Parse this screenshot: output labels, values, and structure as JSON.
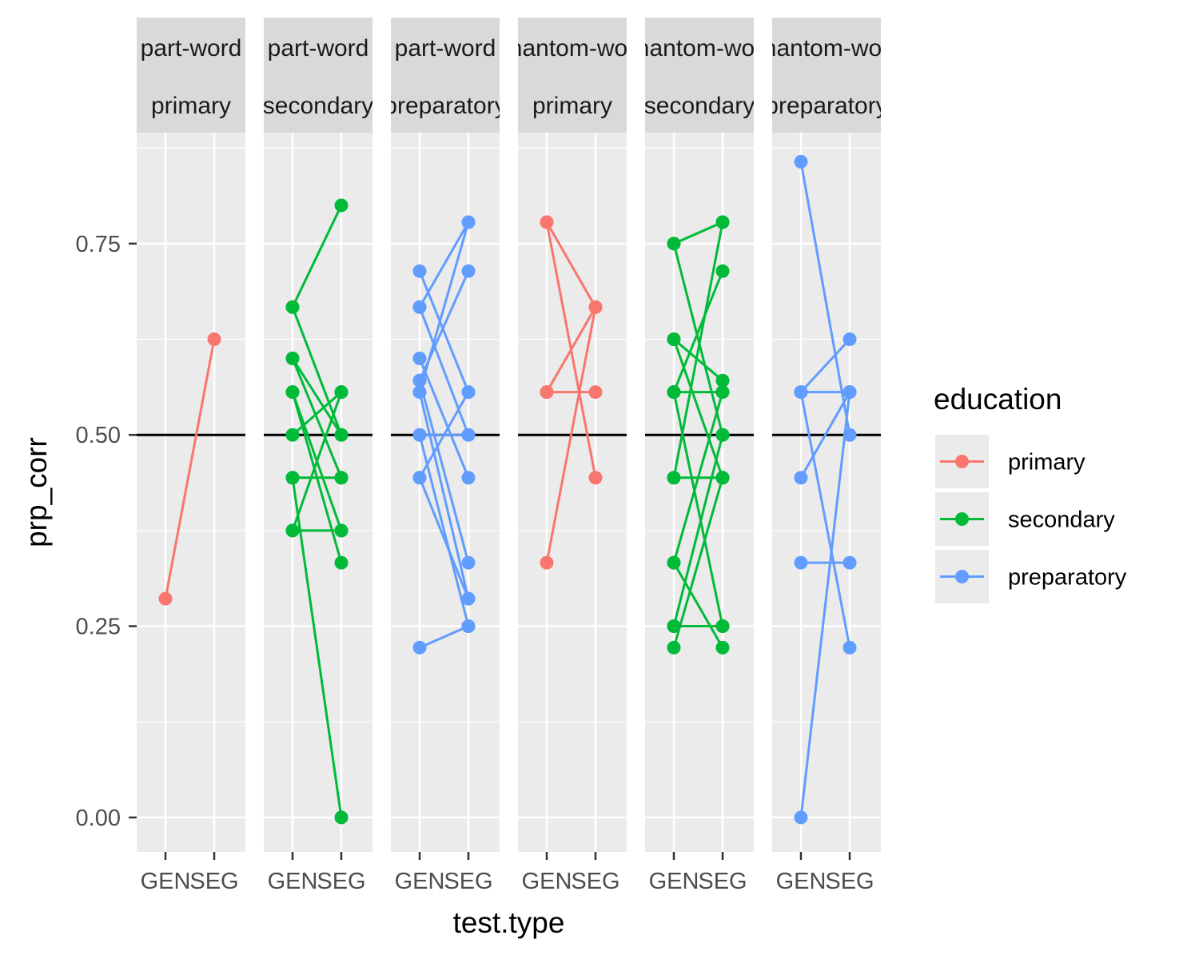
{
  "chart_data": {
    "type": "line",
    "xlabel": "test.type",
    "ylabel": "prp_corr",
    "x_categories": [
      "GEN",
      "SEG"
    ],
    "ylim": [
      -0.045,
      0.895
    ],
    "y_ticks": [
      0,
      0.25,
      0.5,
      0.75
    ],
    "y_tick_labels": [
      "0.00",
      "0.25",
      "0.50",
      "0.75"
    ],
    "reference_line": 0.5,
    "grid": true,
    "legend": {
      "title": "education",
      "position": "right",
      "entries": [
        {
          "label": "primary",
          "color": "#F8766D"
        },
        {
          "label": "secondary",
          "color": "#00BA38"
        },
        {
          "label": "preparatory",
          "color": "#619CFF"
        }
      ]
    },
    "panels": [
      {
        "strip_top": "part-word",
        "strip_bottom": "primary",
        "education": "primary",
        "pairs": [
          [
            0.286,
            0.625
          ]
        ]
      },
      {
        "strip_top": "part-word",
        "strip_bottom": "secondary",
        "education": "secondary",
        "pairs": [
          [
            0.667,
            0.8
          ],
          [
            0.667,
            0.5
          ],
          [
            0.6,
            0.444
          ],
          [
            0.6,
            0.5
          ],
          [
            0.556,
            0.375
          ],
          [
            0.556,
            0.333
          ],
          [
            0.5,
            0.556
          ],
          [
            0.444,
            0.444
          ],
          [
            0.444,
            0.0
          ],
          [
            0.375,
            0.556
          ],
          [
            0.375,
            0.375
          ]
        ]
      },
      {
        "strip_top": "part-word",
        "strip_bottom": "preparatory",
        "education": "preparatory",
        "pairs": [
          [
            0.714,
            0.556
          ],
          [
            0.667,
            0.778
          ],
          [
            0.667,
            0.5
          ],
          [
            0.6,
            0.444
          ],
          [
            0.571,
            0.714
          ],
          [
            0.571,
            0.333
          ],
          [
            0.556,
            0.778
          ],
          [
            0.556,
            0.286
          ],
          [
            0.5,
            0.5
          ],
          [
            0.5,
            0.25
          ],
          [
            0.444,
            0.556
          ],
          [
            0.444,
            0.286
          ],
          [
            0.222,
            0.25
          ]
        ]
      },
      {
        "strip_top": "phantom-word",
        "strip_bottom": "primary",
        "education": "primary",
        "pairs": [
          [
            0.778,
            0.667
          ],
          [
            0.778,
            0.444
          ],
          [
            0.556,
            0.556
          ],
          [
            0.556,
            0.667
          ],
          [
            0.333,
            0.667
          ]
        ]
      },
      {
        "strip_top": "phantom-word",
        "strip_bottom": "secondary",
        "education": "secondary",
        "pairs": [
          [
            0.75,
            0.778
          ],
          [
            0.75,
            0.5
          ],
          [
            0.625,
            0.444
          ],
          [
            0.625,
            0.571
          ],
          [
            0.556,
            0.556
          ],
          [
            0.556,
            0.714
          ],
          [
            0.556,
            0.25
          ],
          [
            0.444,
            0.444
          ],
          [
            0.444,
            0.778
          ],
          [
            0.333,
            0.556
          ],
          [
            0.333,
            0.222
          ],
          [
            0.25,
            0.25
          ],
          [
            0.25,
            0.5
          ],
          [
            0.222,
            0.444
          ]
        ]
      },
      {
        "strip_top": "phantom-word",
        "strip_bottom": "preparatory",
        "education": "preparatory",
        "pairs": [
          [
            0.857,
            0.5
          ],
          [
            0.556,
            0.556
          ],
          [
            0.556,
            0.625
          ],
          [
            0.556,
            0.222
          ],
          [
            0.444,
            0.556
          ],
          [
            0.333,
            0.333
          ],
          [
            0.0,
            0.556
          ]
        ]
      }
    ]
  }
}
